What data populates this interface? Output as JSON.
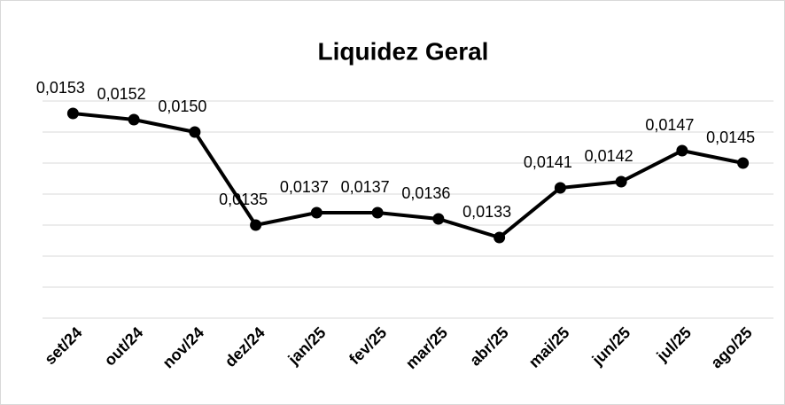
{
  "chart_data": {
    "type": "line",
    "title": "Liquidez Geral",
    "categories": [
      "set/24",
      "out/24",
      "nov/24",
      "dez/24",
      "jan/25",
      "fev/25",
      "mar/25",
      "abr/25",
      "mai/25",
      "jun/25",
      "jul/25",
      "ago/25"
    ],
    "values": [
      0.0153,
      0.0152,
      0.015,
      0.0135,
      0.0137,
      0.0137,
      0.0136,
      0.0133,
      0.0141,
      0.0142,
      0.0147,
      0.0145
    ],
    "value_labels": [
      "0,0153",
      "0,0152",
      "0,0150",
      "0,0135",
      "0,0137",
      "0,0137",
      "0,0136",
      "0,0133",
      "0,0141",
      "0,0142",
      "0,0147",
      "0,0145"
    ],
    "color": "#000000",
    "ylim": [
      0.012,
      0.0155
    ],
    "yticks": [
      0.012,
      0.0125,
      0.013,
      0.0135,
      0.014,
      0.0145,
      0.015,
      0.0155
    ],
    "grid": true
  }
}
